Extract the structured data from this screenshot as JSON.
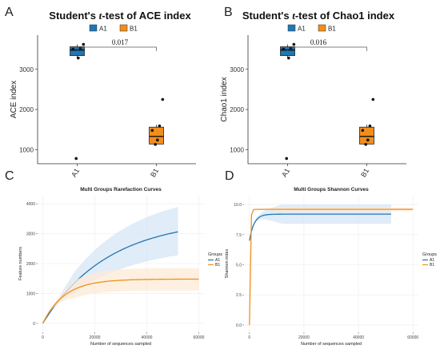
{
  "colors": {
    "A1": "#1f77b4",
    "B1": "#f28e1c",
    "band_A1": "#d6e6f4",
    "band_B1": "#fdebd6"
  },
  "panels": {
    "A": "A",
    "B": "B",
    "C": "C",
    "D": "D"
  },
  "chart_data": [
    {
      "type": "box",
      "panel": "A",
      "title": "Student's t-test of ACE index",
      "title_parts": [
        "Student's ",
        "t",
        "-test of ACE index"
      ],
      "ylabel": "ACE index",
      "categories": [
        "A1",
        "B1"
      ],
      "legend": [
        "A1",
        "B1"
      ],
      "yticks": [
        1000,
        2000,
        3000
      ],
      "ylim": [
        650,
        3850
      ],
      "pvalue": "0.017",
      "boxes": [
        {
          "name": "A1",
          "min": 3280,
          "q1": 3340,
          "median": 3480,
          "q3": 3560,
          "max": 3620,
          "points": [
            3620,
            3530,
            3500,
            3280,
            780
          ]
        },
        {
          "name": "B1",
          "min": 1130,
          "q1": 1140,
          "median": 1330,
          "q3": 1560,
          "max": 1620,
          "points": [
            2250,
            1590,
            1480,
            1240,
            1130
          ]
        }
      ]
    },
    {
      "type": "box",
      "panel": "B",
      "title": "Student's t-test of Chao1 index",
      "title_parts": [
        "Student's ",
        "t",
        "-test of Chao1 index"
      ],
      "ylabel": "Chao1 index",
      "categories": [
        "A1",
        "B1"
      ],
      "legend": [
        "A1",
        "B1"
      ],
      "yticks": [
        1000,
        2000,
        3000
      ],
      "ylim": [
        650,
        3850
      ],
      "pvalue": "0.016",
      "boxes": [
        {
          "name": "A1",
          "min": 3280,
          "q1": 3340,
          "median": 3480,
          "q3": 3560,
          "max": 3620,
          "points": [
            3620,
            3530,
            3500,
            3280,
            780
          ]
        },
        {
          "name": "B1",
          "min": 1130,
          "q1": 1140,
          "median": 1330,
          "q3": 1560,
          "max": 1620,
          "points": [
            2250,
            1590,
            1480,
            1240,
            1130
          ]
        }
      ]
    },
    {
      "type": "line",
      "panel": "C",
      "title": "Multi Groups Rarefaction Curves",
      "xlabel": "Number of sequences sampled",
      "ylabel": "Feature numbers",
      "xticks": [
        0,
        20000,
        40000,
        60000
      ],
      "yticks": [
        0,
        1000,
        2000,
        3000,
        4000
      ],
      "xlim": [
        -2000,
        62000
      ],
      "ylim": [
        -300,
        4300
      ],
      "legend_title": "Groups",
      "series": [
        {
          "name": "A1",
          "xmax": 52000,
          "asymptote": 3500,
          "k": 4e-05,
          "band_top_asym": 4450,
          "band_bot_asym": 2600
        },
        {
          "name": "B1",
          "xmax": 60000,
          "asymptote": 1480,
          "k": 0.00012,
          "band_top_asym": 1850,
          "band_bot_asym": 1100
        }
      ]
    },
    {
      "type": "line",
      "panel": "D",
      "title": "Multi Groups Shannon Curves",
      "xlabel": "Number of sequences sampled",
      "ylabel": "Shannon index",
      "xticks": [
        0,
        20000,
        40000,
        60000
      ],
      "yticks": [
        0.0,
        2.5,
        5.0,
        7.5,
        10.0
      ],
      "ytick_labels": [
        "0.0",
        "2.5",
        "5.0",
        "7.5",
        "10.0"
      ],
      "xlim": [
        -2000,
        62000
      ],
      "ylim": [
        -0.6,
        10.8
      ],
      "legend_title": "Groups",
      "series": [
        {
          "name": "A1",
          "xmax": 52000,
          "asymptote": 9.2,
          "start": 7.0,
          "k": 0.0006,
          "band_top_asym": 10.0,
          "band_bot_asym": 8.4
        },
        {
          "name": "B1",
          "xmax": 60000,
          "asymptote": 9.6,
          "start": 0.0,
          "k": 0.004,
          "band_top_asym": 9.75,
          "band_bot_asym": 9.45
        }
      ]
    }
  ]
}
